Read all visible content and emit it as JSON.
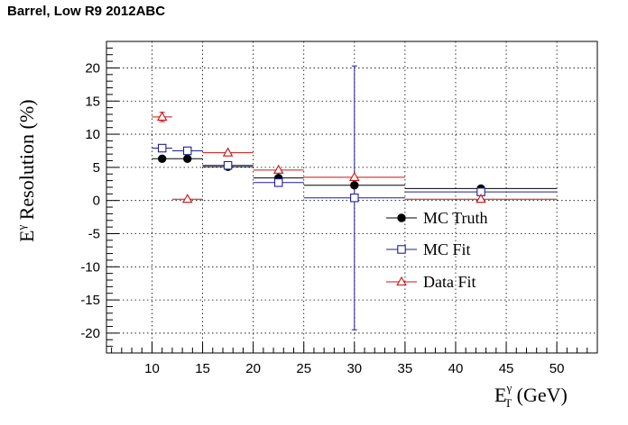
{
  "chart_data": {
    "type": "scatter",
    "title": "Barrel,  Low R9 2012ABC",
    "xlabel": "E_T^γ (GeV)",
    "ylabel": "E^γ Resolution (%)",
    "xlim": [
      5.5,
      54
    ],
    "ylim": [
      -23,
      24
    ],
    "xticks": [
      10,
      15,
      20,
      25,
      30,
      35,
      40,
      45,
      50
    ],
    "yticks": [
      -20,
      -15,
      -10,
      -5,
      0,
      5,
      10,
      15,
      20
    ],
    "grid": true,
    "legend_position": "right-center",
    "series": [
      {
        "name": "MC Truth",
        "color": "#000000",
        "marker": "filled-circle",
        "points": [
          {
            "x": 11,
            "y": 6.3,
            "xlow": 10,
            "xhigh": 12
          },
          {
            "x": 13.5,
            "y": 6.3,
            "xlow": 12,
            "xhigh": 15
          },
          {
            "x": 17.5,
            "y": 5.1,
            "xlow": 15,
            "xhigh": 20
          },
          {
            "x": 22.5,
            "y": 3.4,
            "xlow": 20,
            "xhigh": 25
          },
          {
            "x": 30,
            "y": 2.3,
            "xlow": 25,
            "xhigh": 35
          },
          {
            "x": 42.5,
            "y": 1.8,
            "xlow": 35,
            "xhigh": 50
          }
        ]
      },
      {
        "name": "MC Fit",
        "color": "#1f1f9a",
        "marker": "open-square",
        "points": [
          {
            "x": 11,
            "y": 7.9,
            "xlow": 10,
            "xhigh": 12
          },
          {
            "x": 13.5,
            "y": 7.5,
            "xlow": 12,
            "xhigh": 15
          },
          {
            "x": 17.5,
            "y": 5.3,
            "xlow": 15,
            "xhigh": 20
          },
          {
            "x": 22.5,
            "y": 2.7,
            "xlow": 20,
            "xhigh": 25
          },
          {
            "x": 30,
            "y": 0.4,
            "xlow": 25,
            "xhigh": 35,
            "ylow": -19.5,
            "yhigh": 20.3
          },
          {
            "x": 42.5,
            "y": 1.3,
            "xlow": 35,
            "xhigh": 50
          }
        ]
      },
      {
        "name": "Data Fit",
        "color": "#cc1111",
        "marker": "open-triangle",
        "points": [
          {
            "x": 11,
            "y": 12.6,
            "xlow": 10,
            "xhigh": 12,
            "ylow": 11.9,
            "yhigh": 13.3
          },
          {
            "x": 13.5,
            "y": 0.2,
            "xlow": 12,
            "xhigh": 15
          },
          {
            "x": 17.5,
            "y": 7.2,
            "xlow": 15,
            "xhigh": 20
          },
          {
            "x": 22.5,
            "y": 4.6,
            "xlow": 20,
            "xhigh": 25
          },
          {
            "x": 30,
            "y": 3.5,
            "xlow": 25,
            "xhigh": 35
          },
          {
            "x": 42.5,
            "y": 0.2,
            "xlow": 35,
            "xhigh": 50
          }
        ]
      }
    ]
  },
  "axis_title_x": {
    "main": "E",
    "sup": "γ",
    "sub": "T",
    "rest": " (GeV)"
  },
  "axis_title_y": {
    "main": "E",
    "sup": "γ",
    "rest": " Resolution (%)"
  }
}
